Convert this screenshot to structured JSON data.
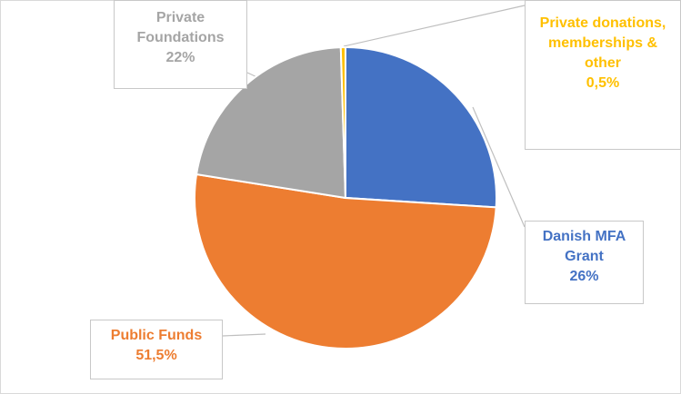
{
  "chart_data": {
    "type": "pie",
    "categories": [
      "Danish MFA Grant",
      "Public Funds",
      "Private Foundations",
      "Private donations, memberships & other"
    ],
    "values": [
      26,
      51.5,
      22,
      0.5
    ],
    "value_labels": [
      "26%",
      "51,5%",
      "22%",
      "0,5%"
    ],
    "colors": [
      "#4472c4",
      "#ed7d31",
      "#a5a5a5",
      "#ffc000"
    ]
  }
}
